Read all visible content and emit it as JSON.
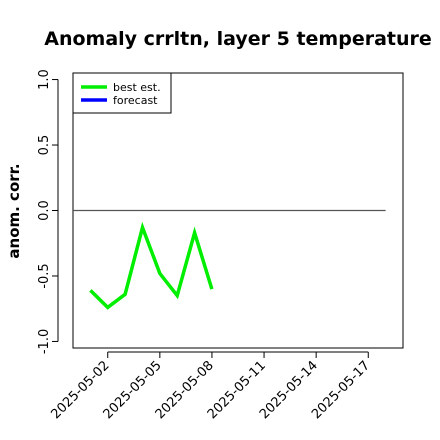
{
  "chart_data": {
    "type": "line",
    "title": "Anomaly crrltn, layer 5 temperature",
    "xlabel": "",
    "ylabel": "anom. corr.",
    "ylim": [
      -1.05,
      1.05
    ],
    "yticks": [
      -1.0,
      -0.5,
      0.0,
      0.5,
      1.0
    ],
    "ytick_labels": [
      "-1.0",
      "-0.5",
      "0.0",
      "0.5",
      "1.0"
    ],
    "xlim": [
      "2025-04-30",
      "2025-05-19"
    ],
    "xticks": [
      "2025-05-02",
      "2025-05-05",
      "2025-05-08",
      "2025-05-11",
      "2025-05-14",
      "2025-05-17"
    ],
    "highlighted_tick": "2025-05-08",
    "highlight_color": "#228b22",
    "reference_line": {
      "y": 0.0,
      "x_start": "2025-05-00",
      "x_end": "2025-05-18",
      "color": "#555555"
    },
    "legend": {
      "position": "top-left",
      "entries": [
        "best est.",
        "forecast"
      ]
    },
    "series": [
      {
        "name": "best est.",
        "color": "#00ee00",
        "x": [
          "2025-05-01",
          "2025-05-02",
          "2025-05-03",
          "2025-05-04",
          "2025-05-05",
          "2025-05-06",
          "2025-05-07",
          "2025-05-08"
        ],
        "values": [
          -0.61,
          -0.74,
          -0.64,
          -0.13,
          -0.48,
          -0.65,
          -0.17,
          -0.6
        ]
      },
      {
        "name": "forecast",
        "color": "#0000ff",
        "x": [],
        "values": []
      }
    ],
    "grid": false
  }
}
